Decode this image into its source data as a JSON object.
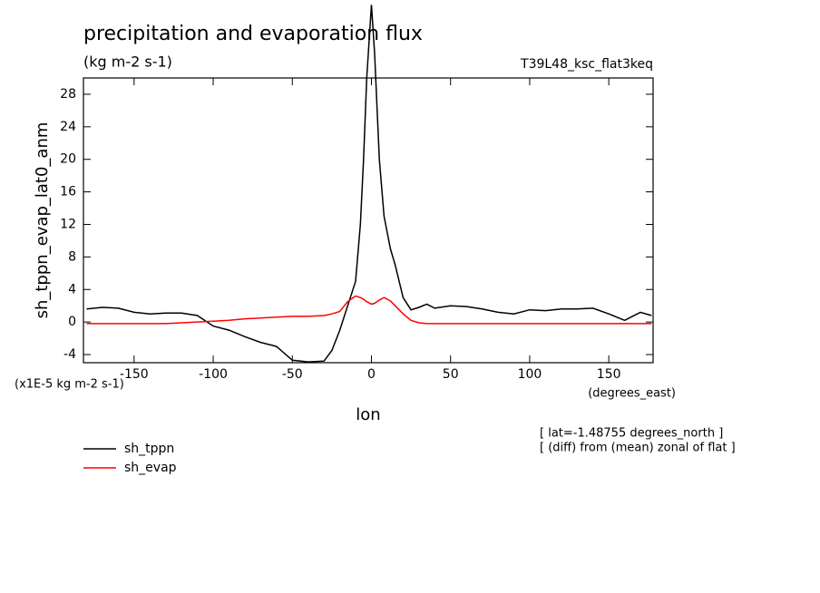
{
  "chart_data": {
    "type": "line",
    "title": "precipitation and evaporation flux",
    "subtitle": "(kg m-2 s-1)",
    "dataset_label": "T39L48_ksc_flat3keq",
    "y_label": "sh_tppn_evap_lat0_anm",
    "y_units": "(x1E-5 kg m-2 s-1)",
    "x_label": "lon",
    "x_units": "(degrees_east)",
    "annotations": [
      "[ lat=-1.48755 degrees_north ]",
      "[ (diff) from (mean) zonal of flat ]"
    ],
    "xlim": [
      -182,
      178
    ],
    "xticks": [
      -150,
      -100,
      -50,
      0,
      50,
      100,
      150
    ],
    "ylim": [
      -5,
      30
    ],
    "yticks": [
      -4,
      0,
      4,
      8,
      12,
      16,
      20,
      24,
      28
    ],
    "x": [
      -180,
      -170,
      -160,
      -150,
      -140,
      -130,
      -120,
      -110,
      -100,
      -90,
      -80,
      -70,
      -60,
      -50,
      -40,
      -30,
      -25,
      -20,
      -15,
      -10,
      -7,
      -5,
      -3,
      0,
      2,
      5,
      8,
      12,
      15,
      20,
      25,
      30,
      35,
      40,
      50,
      60,
      70,
      80,
      90,
      100,
      110,
      120,
      130,
      140,
      150,
      160,
      170,
      177
    ],
    "series": [
      {
        "name": "sh_tppn",
        "color": "#000000",
        "values": [
          1.6,
          1.8,
          1.7,
          1.2,
          1.0,
          1.1,
          1.1,
          0.8,
          -0.5,
          -1.0,
          -1.8,
          -2.5,
          -3.0,
          -4.7,
          -4.9,
          -4.8,
          -3.5,
          -1.0,
          2.0,
          5.0,
          12,
          20,
          30,
          39,
          33,
          20,
          13,
          9,
          7,
          3,
          1.5,
          1.8,
          2.2,
          1.7,
          2.0,
          1.9,
          1.6,
          1.2,
          1.0,
          1.5,
          1.4,
          1.6,
          1.6,
          1.7,
          1.0,
          0.2,
          1.2,
          0.8
        ]
      },
      {
        "name": "sh_evap",
        "color": "#ff0000",
        "values": [
          -0.2,
          -0.2,
          -0.2,
          -0.2,
          -0.2,
          -0.2,
          -0.1,
          0.0,
          0.1,
          0.2,
          0.4,
          0.5,
          0.6,
          0.7,
          0.7,
          0.8,
          1.0,
          1.3,
          2.5,
          3.2,
          3.0,
          2.8,
          2.5,
          2.2,
          2.3,
          2.7,
          3.0,
          2.6,
          2.0,
          1.0,
          0.2,
          -0.1,
          -0.2,
          -0.2,
          -0.2,
          -0.2,
          -0.2,
          -0.2,
          -0.2,
          -0.2,
          -0.2,
          -0.2,
          -0.2,
          -0.2,
          -0.2,
          -0.2,
          -0.2,
          -0.2
        ]
      }
    ]
  }
}
